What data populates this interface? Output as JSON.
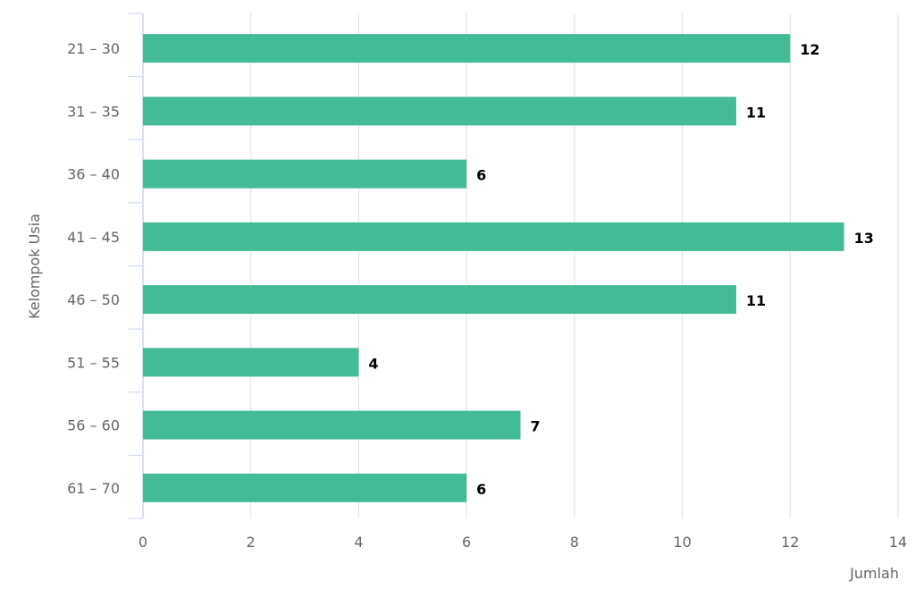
{
  "chart_data": {
    "type": "bar",
    "orientation": "horizontal",
    "title": "",
    "xlabel": "Jumlah",
    "ylabel": "Kelompok Usia",
    "categories": [
      "21 – 30",
      "31 – 35",
      "36 – 40",
      "41 – 45",
      "46 – 50",
      "51 – 55",
      "56 – 60",
      "61 – 70"
    ],
    "values": [
      12,
      11,
      6,
      13,
      11,
      4,
      7,
      6
    ],
    "xlim": [
      0,
      14
    ],
    "xticks": [
      0,
      2,
      4,
      6,
      8,
      10,
      12,
      14
    ],
    "grid": true,
    "data_labels": true,
    "bar_color": "#42bb96"
  }
}
